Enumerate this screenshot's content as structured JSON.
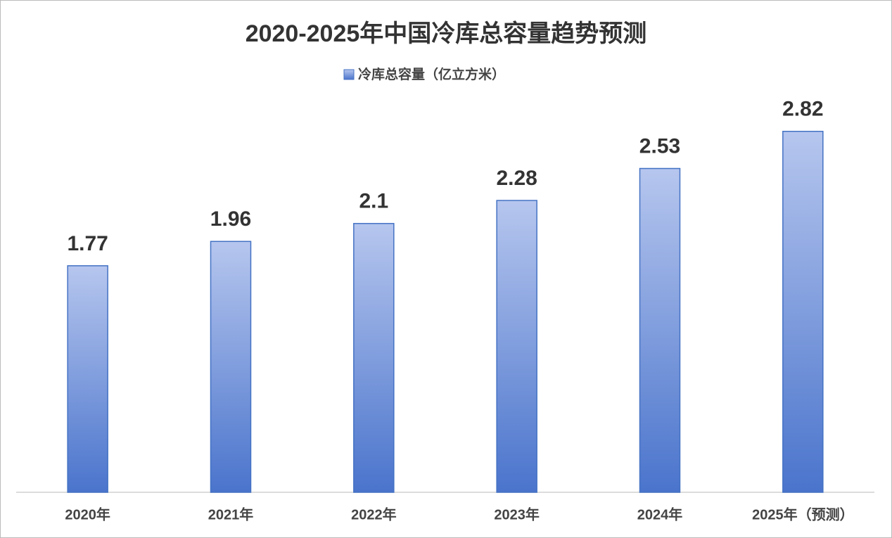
{
  "chart_data": {
    "type": "bar",
    "title": "2020-2025年中国冷库总容量趋势预测",
    "series": [
      {
        "name": "冷库总容量（亿立方米）",
        "color": "#4472c4",
        "values": [
          1.77,
          1.96,
          2.1,
          2.28,
          2.53,
          2.82
        ]
      }
    ],
    "categories": [
      "2020年",
      "2021年",
      "2022年",
      "2023年",
      "2024年",
      "2025年（预测）"
    ],
    "ylim": [
      0,
      3
    ]
  }
}
